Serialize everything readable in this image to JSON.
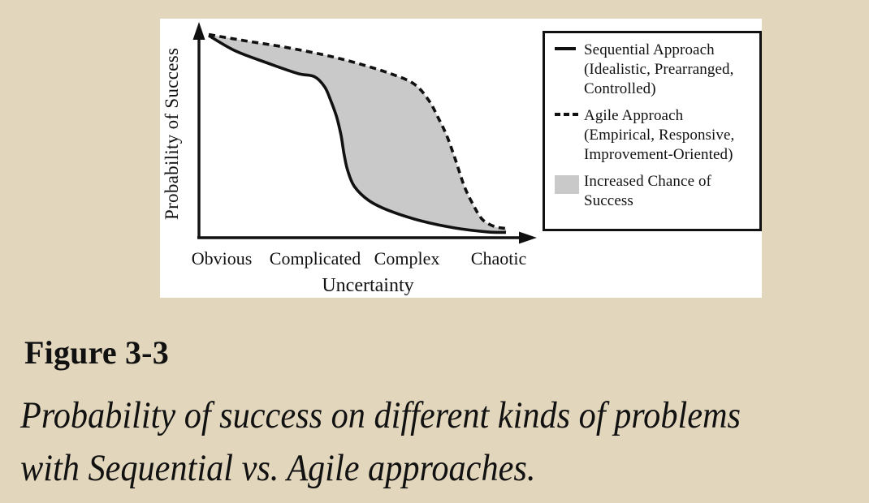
{
  "colors": {
    "page_background": "#e2d7bd",
    "panel_background": "#ffffff",
    "line_color": "#111111",
    "band_fill": "#c9c9c9"
  },
  "chart_data": {
    "type": "line",
    "title": "",
    "xlabel": "Uncertainty",
    "ylabel": "Probability of Success",
    "x_categories": [
      "Obvious",
      "Complicated",
      "Complex",
      "Chaotic"
    ],
    "xlim": [
      0,
      1
    ],
    "ylim": [
      0,
      1
    ],
    "grid": false,
    "legend_position": "top-right",
    "axes_numeric_ticks": false,
    "series": [
      {
        "name": "Sequential Approach",
        "style": "solid",
        "points": [
          [
            0.0,
            0.985
          ],
          [
            0.09,
            0.91
          ],
          [
            0.2,
            0.85
          ],
          [
            0.3,
            0.8
          ],
          [
            0.355,
            0.785
          ],
          [
            0.39,
            0.735
          ],
          [
            0.41,
            0.67
          ],
          [
            0.43,
            0.59
          ],
          [
            0.445,
            0.5
          ],
          [
            0.455,
            0.41
          ],
          [
            0.467,
            0.33
          ],
          [
            0.49,
            0.25
          ],
          [
            0.54,
            0.18
          ],
          [
            0.61,
            0.13
          ],
          [
            0.72,
            0.08
          ],
          [
            0.83,
            0.047
          ],
          [
            0.94,
            0.028
          ],
          [
            1.0,
            0.026
          ]
        ]
      },
      {
        "name": "Agile Approach",
        "style": "dashed",
        "points": [
          [
            0.0,
            0.99
          ],
          [
            0.12,
            0.96
          ],
          [
            0.25,
            0.93
          ],
          [
            0.39,
            0.89
          ],
          [
            0.5,
            0.85
          ],
          [
            0.61,
            0.8
          ],
          [
            0.69,
            0.75
          ],
          [
            0.74,
            0.67
          ],
          [
            0.77,
            0.59
          ],
          [
            0.8,
            0.5
          ],
          [
            0.83,
            0.38
          ],
          [
            0.86,
            0.25
          ],
          [
            0.89,
            0.16
          ],
          [
            0.92,
            0.09
          ],
          [
            0.96,
            0.055
          ],
          [
            1.0,
            0.045
          ]
        ]
      }
    ],
    "band": {
      "label": "Increased Chance of Success",
      "between": [
        "Agile Approach",
        "Sequential Approach"
      ],
      "fill": "#c9c9c9"
    }
  },
  "legend": {
    "items": [
      {
        "swatch": "solid-line",
        "label": "Sequential Approach\n(Idealistic, Prearranged,\nControlled)"
      },
      {
        "swatch": "dashed-line",
        "label": "Agile Approach\n(Empirical, Responsive,\nImprovement-Oriented)"
      },
      {
        "swatch": "shaded-area",
        "label": "Increased Chance of\nSuccess"
      }
    ]
  },
  "caption": {
    "label": "Figure 3-3",
    "text": "Probability of success on different kinds of problems\nwith Sequential vs. Agile approaches."
  }
}
